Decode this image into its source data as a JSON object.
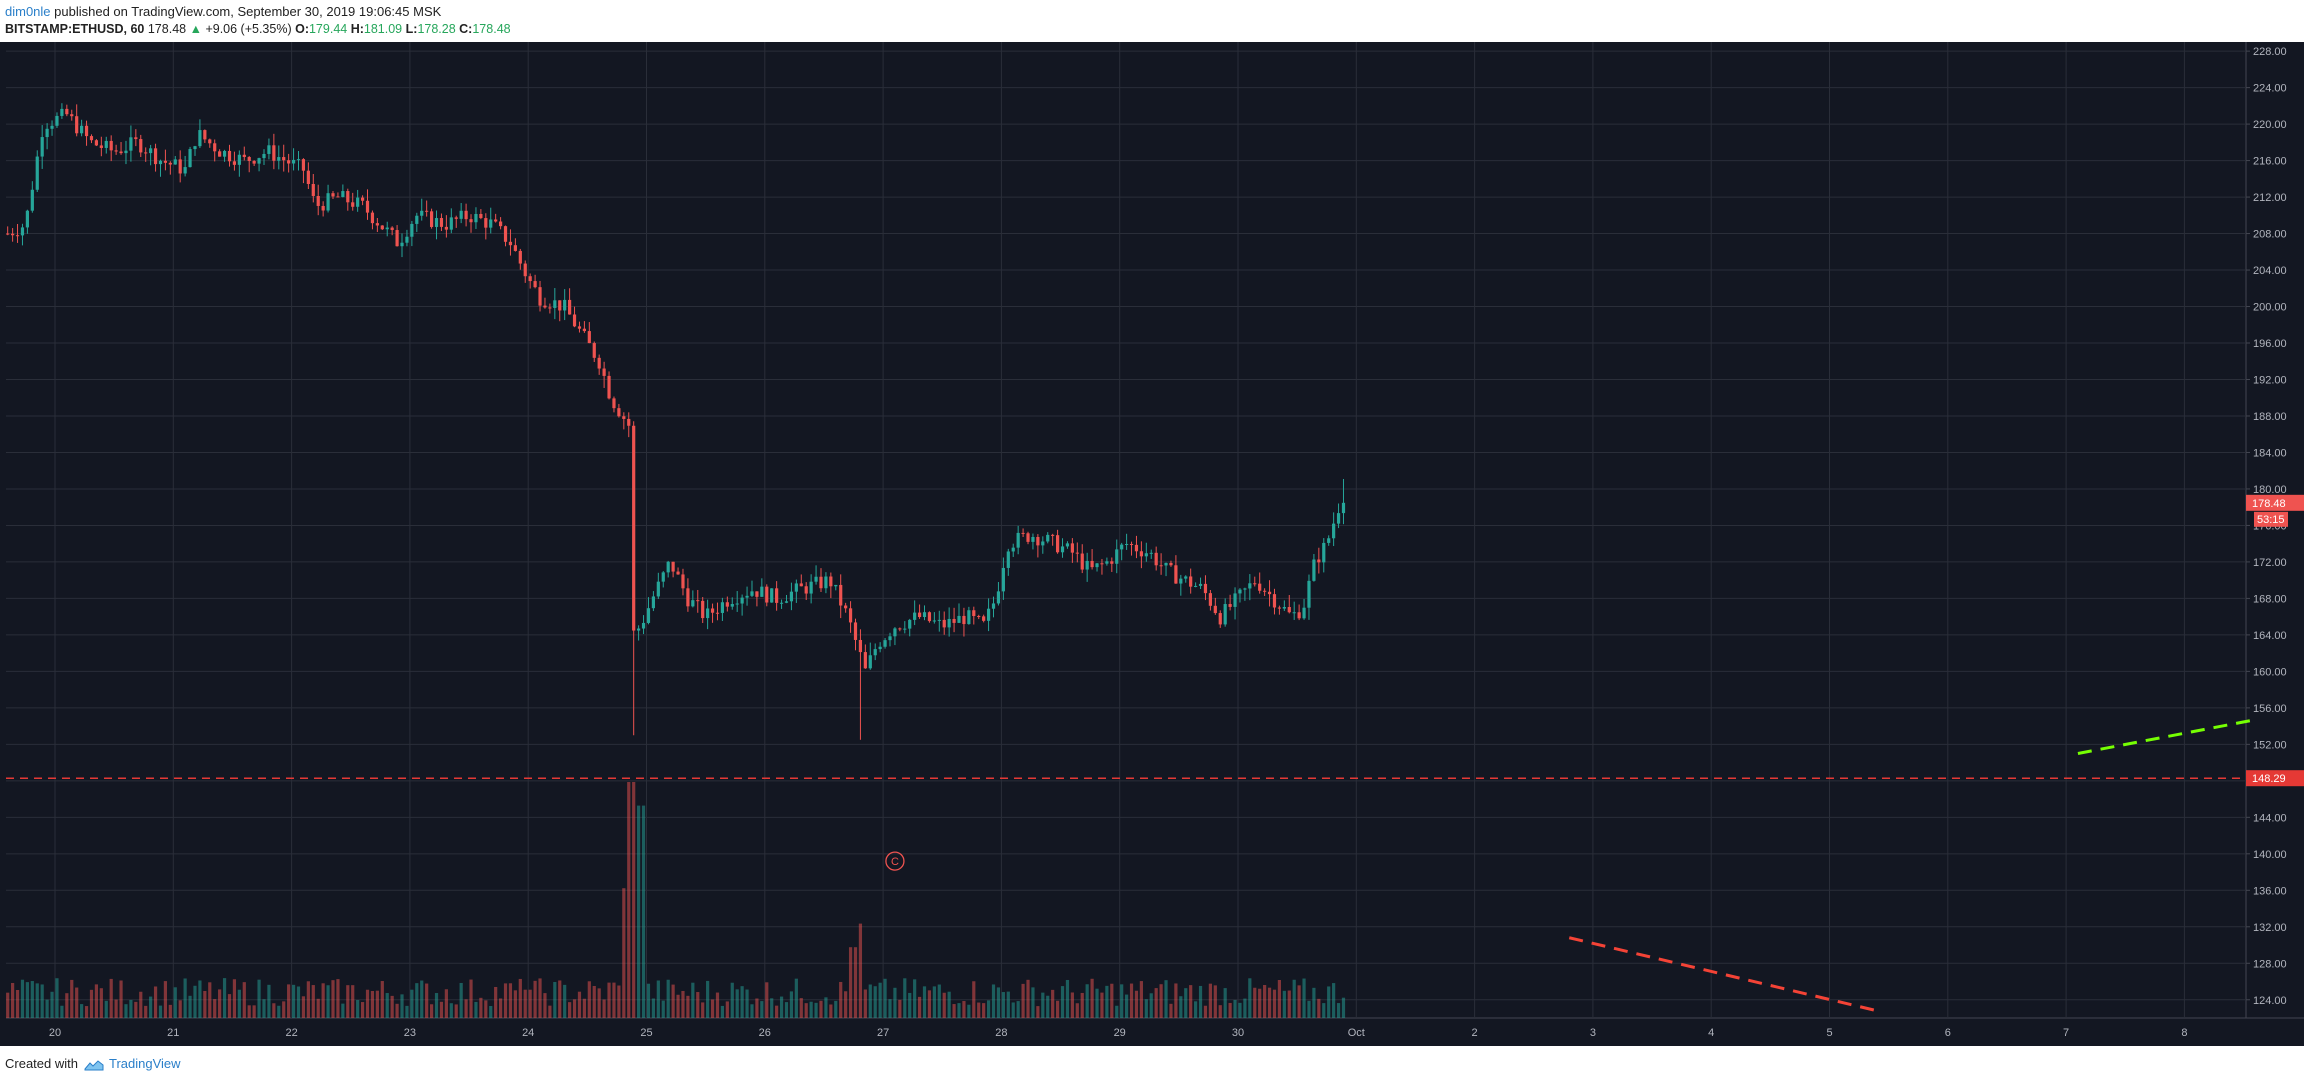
{
  "header": {
    "user": "dim0nle",
    "published_text": "published on TradingView.com, September 30, 2019 19:06:45 MSK",
    "symbol": "BITSTAMP:ETHUSD, 60",
    "last_price": "178.48",
    "arrow": "▲",
    "change": "+9.06 (+5.35%)",
    "o_label": "O:",
    "o_value": "179.44",
    "h_label": "H:",
    "h_value": "181.09",
    "l_label": "L:",
    "l_value": "178.28",
    "c_label": "C:",
    "c_value": "178.48"
  },
  "footer": {
    "created_with": "Created with",
    "brand": "TradingView"
  },
  "colors": {
    "background": "#131722",
    "grid": "#2a2e39",
    "up": "#26a69a",
    "down": "#ef5350",
    "axis_text": "#b2b5be",
    "horizontal_line": "#e53935",
    "green_trend": "#76ff03",
    "red_trend": "#f44336"
  },
  "chart_data": {
    "type": "candlestick",
    "symbol": "BITSTAMP:ETHUSD",
    "interval": "60",
    "ylim": [
      122,
      229
    ],
    "x_labels": [
      "20",
      "21",
      "22",
      "23",
      "24",
      "25",
      "26",
      "27",
      "28",
      "29",
      "30",
      "Oct",
      "2",
      "3",
      "4",
      "5",
      "6",
      "7",
      "8"
    ],
    "y_ticks": [
      "228.00",
      "224.00",
      "220.00",
      "216.00",
      "212.00",
      "208.00",
      "204.00",
      "200.00",
      "196.00",
      "192.00",
      "188.00",
      "184.00",
      "180.00",
      "176.00",
      "172.00",
      "168.00",
      "164.00",
      "160.00",
      "156.00",
      "152.00",
      "148.00",
      "144.00",
      "140.00",
      "136.00",
      "132.00",
      "128.00",
      "124.00"
    ],
    "last_price_label": "178.48",
    "countdown_label": "53:15",
    "horizontal_level": 148.29,
    "horizontal_level_label": "148.29",
    "marker_label": "C",
    "marker": {
      "day": 27.1,
      "price": 139.2
    },
    "green_trendline": {
      "from": {
        "day": "7.1",
        "price": 151.0
      },
      "to": {
        "day": "8.6",
        "price": 154.7
      }
    },
    "red_trendline": {
      "from": {
        "day": "2.8",
        "price": 130.8
      },
      "to": {
        "day": "5.4",
        "price": 122.8
      }
    },
    "price_path": [
      {
        "day": 19.6,
        "price": 208
      },
      {
        "day": 19.75,
        "price": 209
      },
      {
        "day": 19.9,
        "price": 220
      },
      {
        "day": 20.1,
        "price": 221
      },
      {
        "day": 20.3,
        "price": 218
      },
      {
        "day": 20.5,
        "price": 217
      },
      {
        "day": 20.7,
        "price": 218
      },
      {
        "day": 20.9,
        "price": 216
      },
      {
        "day": 21.1,
        "price": 215
      },
      {
        "day": 21.2,
        "price": 219
      },
      {
        "day": 21.4,
        "price": 217
      },
      {
        "day": 21.6,
        "price": 216
      },
      {
        "day": 21.8,
        "price": 217
      },
      {
        "day": 21.95,
        "price": 216
      },
      {
        "day": 22.1,
        "price": 215
      },
      {
        "day": 22.2,
        "price": 211
      },
      {
        "day": 22.4,
        "price": 212
      },
      {
        "day": 22.6,
        "price": 211
      },
      {
        "day": 22.75,
        "price": 209
      },
      {
        "day": 22.9,
        "price": 207
      },
      {
        "day": 23.05,
        "price": 210
      },
      {
        "day": 23.3,
        "price": 209
      },
      {
        "day": 23.5,
        "price": 210
      },
      {
        "day": 23.7,
        "price": 209
      },
      {
        "day": 23.85,
        "price": 207
      },
      {
        "day": 24.0,
        "price": 203
      },
      {
        "day": 24.1,
        "price": 201
      },
      {
        "day": 24.3,
        "price": 200
      },
      {
        "day": 24.45,
        "price": 197
      },
      {
        "day": 24.6,
        "price": 194
      },
      {
        "day": 24.7,
        "price": 190
      },
      {
        "day": 24.85,
        "price": 187
      },
      {
        "day": 24.88,
        "price": 164
      },
      {
        "day": 24.95,
        "price": 165
      },
      {
        "day": 25.05,
        "price": 168
      },
      {
        "day": 25.2,
        "price": 172
      },
      {
        "day": 25.35,
        "price": 168
      },
      {
        "day": 25.5,
        "price": 166
      },
      {
        "day": 25.7,
        "price": 168
      },
      {
        "day": 25.9,
        "price": 169
      },
      {
        "day": 26.1,
        "price": 168
      },
      {
        "day": 26.3,
        "price": 169
      },
      {
        "day": 26.55,
        "price": 170
      },
      {
        "day": 26.7,
        "price": 166
      },
      {
        "day": 26.85,
        "price": 160
      },
      {
        "day": 26.95,
        "price": 163
      },
      {
        "day": 27.1,
        "price": 165
      },
      {
        "day": 27.3,
        "price": 166
      },
      {
        "day": 27.5,
        "price": 165
      },
      {
        "day": 27.7,
        "price": 166
      },
      {
        "day": 27.85,
        "price": 165
      },
      {
        "day": 27.95,
        "price": 168
      },
      {
        "day": 28.05,
        "price": 174
      },
      {
        "day": 28.25,
        "price": 175
      },
      {
        "day": 28.45,
        "price": 174
      },
      {
        "day": 28.6,
        "price": 173
      },
      {
        "day": 28.75,
        "price": 171
      },
      {
        "day": 28.9,
        "price": 172
      },
      {
        "day": 29.05,
        "price": 174
      },
      {
        "day": 29.25,
        "price": 173
      },
      {
        "day": 29.4,
        "price": 171
      },
      {
        "day": 29.55,
        "price": 170
      },
      {
        "day": 29.7,
        "price": 169
      },
      {
        "day": 29.85,
        "price": 166
      },
      {
        "day": 30.0,
        "price": 168
      },
      {
        "day": 30.15,
        "price": 170
      },
      {
        "day": 30.3,
        "price": 168
      },
      {
        "day": 30.45,
        "price": 166
      },
      {
        "day": 30.55,
        "price": 167
      },
      {
        "day": 30.65,
        "price": 172
      },
      {
        "day": 30.75,
        "price": 174
      },
      {
        "day": 30.85,
        "price": 178
      },
      {
        "day": 30.9,
        "price": 178.48
      }
    ],
    "volume_spikes": [
      {
        "day": 24.88,
        "level": 1.0
      },
      {
        "day": 24.95,
        "level": 0.9
      },
      {
        "day": 24.8,
        "level": 0.55
      },
      {
        "day": 24.7,
        "level": 0.15
      },
      {
        "day": 26.8,
        "level": 0.4
      },
      {
        "day": 26.75,
        "level": 0.3
      },
      {
        "day": 30.3,
        "level": 0.12
      },
      {
        "day": 24.0,
        "level": 0.12
      }
    ]
  }
}
